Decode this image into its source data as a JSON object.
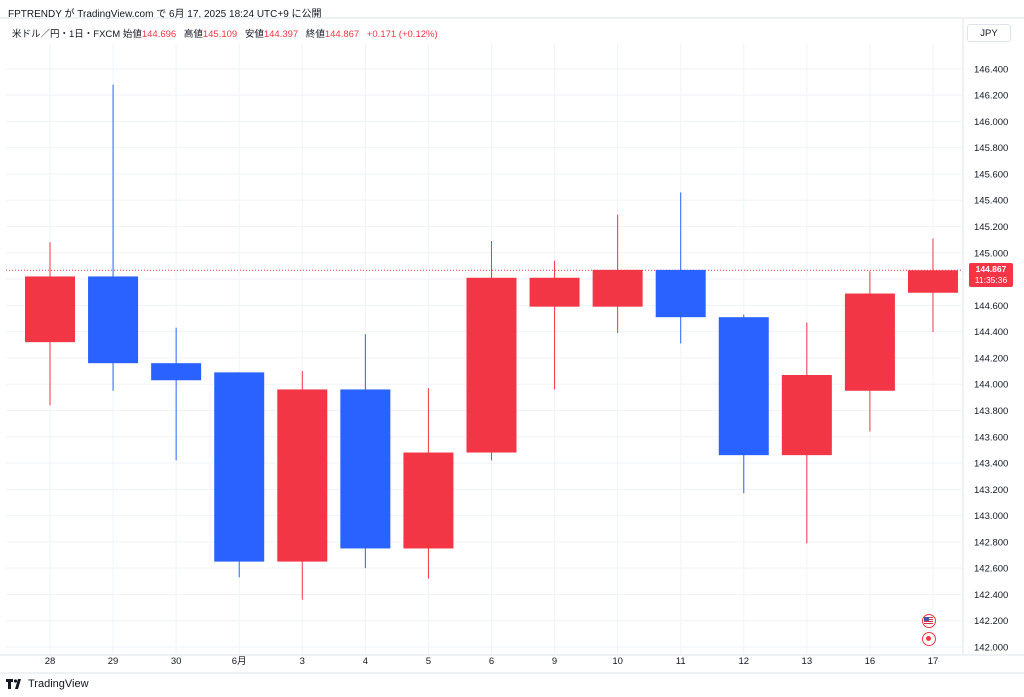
{
  "header": {
    "published_line": "FPTRENDY が TradingView.com で 6月 17, 2025 18:24 UTC+9 に公開",
    "symbol": "米ドル／円・1日・FXCM",
    "open_label": "始値",
    "open_value": "144.696",
    "high_label": "高値",
    "high_value": "145.109",
    "low_label": "安値",
    "low_value": "144.397",
    "close_label": "終値",
    "close_value": "144.867",
    "change": "+0.171 (+0.12%)"
  },
  "currency": "JPY",
  "price_tag": {
    "last": "144.867",
    "countdown": "11:35:36"
  },
  "footer": {
    "brand": "TradingView"
  },
  "colors": {
    "up": "#f23645",
    "down": "#2962ff",
    "grid": "#f0f3fa",
    "text": "#131722"
  },
  "icons": {
    "event_1": "us-flag-icon",
    "event_2": "event-dot-icon",
    "logo": "tradingview-logo-icon"
  },
  "chart_data": {
    "type": "candlestick",
    "symbol": "USDJPY",
    "interval": "1D",
    "ylim": [
      142.0,
      146.5
    ],
    "y_ticks": [
      "142.000",
      "142.200",
      "142.400",
      "142.600",
      "142.800",
      "143.000",
      "143.200",
      "143.400",
      "143.600",
      "143.800",
      "144.000",
      "144.200",
      "144.400",
      "144.600",
      "144.800",
      "145.000",
      "145.200",
      "145.400",
      "145.600",
      "145.800",
      "146.000",
      "146.200",
      "146.400"
    ],
    "categories": [
      "28",
      "29",
      "30",
      "6月",
      "3",
      "4",
      "5",
      "6",
      "9",
      "10",
      "11",
      "12",
      "13",
      "16",
      "17"
    ],
    "candles": [
      {
        "o": 144.32,
        "h": 145.08,
        "l": 143.84,
        "c": 144.82
      },
      {
        "o": 144.82,
        "h": 146.28,
        "l": 143.95,
        "c": 144.16
      },
      {
        "o": 144.16,
        "h": 144.43,
        "l": 143.42,
        "c": 144.03
      },
      {
        "o": 144.09,
        "h": 144.09,
        "l": 142.53,
        "c": 142.65
      },
      {
        "o": 142.65,
        "h": 144.1,
        "l": 142.36,
        "c": 143.96
      },
      {
        "o": 143.96,
        "h": 144.38,
        "l": 142.6,
        "c": 142.75
      },
      {
        "o": 142.75,
        "h": 143.97,
        "l": 142.52,
        "c": 143.48
      },
      {
        "o": 143.48,
        "h": 145.09,
        "l": 143.42,
        "c": 144.81
      },
      {
        "o": 144.59,
        "h": 144.94,
        "l": 143.96,
        "c": 144.81
      },
      {
        "o": 144.59,
        "h": 145.29,
        "l": 144.39,
        "c": 144.87
      },
      {
        "o": 144.87,
        "h": 145.46,
        "l": 144.31,
        "c": 144.51
      },
      {
        "o": 144.51,
        "h": 144.53,
        "l": 143.17,
        "c": 143.46
      },
      {
        "o": 143.46,
        "h": 144.47,
        "l": 142.79,
        "c": 144.07
      },
      {
        "o": 143.95,
        "h": 144.86,
        "l": 143.64,
        "c": 144.69
      },
      {
        "o": 144.696,
        "h": 145.109,
        "l": 144.397,
        "c": 144.867
      }
    ],
    "last_price": 144.867
  }
}
